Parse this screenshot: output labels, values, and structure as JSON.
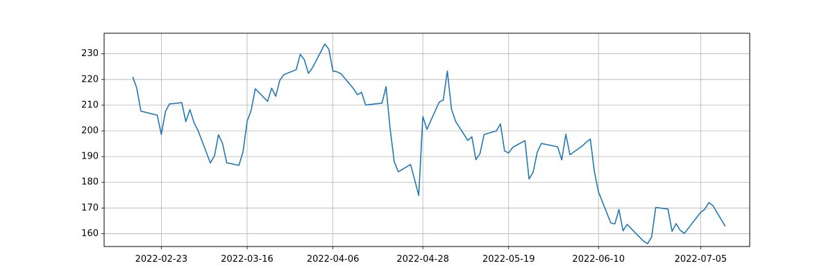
{
  "chart_data": {
    "type": "line",
    "title": "",
    "xlabel": "",
    "ylabel": "",
    "x_ticks": [
      "2022-02-23",
      "2022-03-16",
      "2022-04-06",
      "2022-04-28",
      "2022-05-19",
      "2022-06-10",
      "2022-07-05"
    ],
    "y_ticks": [
      160,
      170,
      180,
      190,
      200,
      210,
      220,
      230
    ],
    "xlim": [
      "2022-02-09",
      "2022-07-17"
    ],
    "ylim": [
      155,
      238
    ],
    "grid": true,
    "colors": {
      "line": "#1f77b4",
      "grid": "#b0b0b0"
    },
    "series": [
      {
        "x": [
          "2022-02-16",
          "2022-02-17",
          "2022-02-18",
          "2022-02-22",
          "2022-02-23",
          "2022-02-24",
          "2022-02-25",
          "2022-02-28",
          "2022-03-01",
          "2022-03-02",
          "2022-03-03",
          "2022-03-04",
          "2022-03-07",
          "2022-03-08",
          "2022-03-09",
          "2022-03-10",
          "2022-03-11",
          "2022-03-14",
          "2022-03-15",
          "2022-03-16",
          "2022-03-17",
          "2022-03-18",
          "2022-03-21",
          "2022-03-22",
          "2022-03-23",
          "2022-03-24",
          "2022-03-25",
          "2022-03-28",
          "2022-03-29",
          "2022-03-30",
          "2022-03-31",
          "2022-04-01",
          "2022-04-04",
          "2022-04-05",
          "2022-04-06",
          "2022-04-07",
          "2022-04-08",
          "2022-04-11",
          "2022-04-12",
          "2022-04-13",
          "2022-04-14",
          "2022-04-18",
          "2022-04-19",
          "2022-04-20",
          "2022-04-21",
          "2022-04-22",
          "2022-04-25",
          "2022-04-26",
          "2022-04-27",
          "2022-04-28",
          "2022-04-29",
          "2022-05-02",
          "2022-05-03",
          "2022-05-04",
          "2022-05-05",
          "2022-05-06",
          "2022-05-09",
          "2022-05-10",
          "2022-05-11",
          "2022-05-12",
          "2022-05-13",
          "2022-05-16",
          "2022-05-17",
          "2022-05-18",
          "2022-05-19",
          "2022-05-20",
          "2022-05-23",
          "2022-05-24",
          "2022-05-25",
          "2022-05-26",
          "2022-05-27",
          "2022-05-31",
          "2022-06-01",
          "2022-06-02",
          "2022-06-03",
          "2022-06-06",
          "2022-06-07",
          "2022-06-08",
          "2022-06-09",
          "2022-06-10",
          "2022-06-13",
          "2022-06-14",
          "2022-06-15",
          "2022-06-16",
          "2022-06-17",
          "2022-06-21",
          "2022-06-22",
          "2022-06-23",
          "2022-06-24",
          "2022-06-27",
          "2022-06-28",
          "2022-06-29",
          "2022-06-30",
          "2022-07-01",
          "2022-07-05",
          "2022-07-06",
          "2022-07-07",
          "2022-07-08",
          "2022-07-11"
        ],
        "y": [
          221.0,
          216.6,
          207.7,
          206.1,
          198.6,
          207.5,
          210.5,
          211.0,
          203.6,
          208.3,
          203.2,
          200.1,
          187.5,
          190.3,
          198.5,
          195.0,
          187.6,
          186.6,
          191.9,
          203.7,
          208.1,
          216.4,
          211.5,
          216.6,
          213.5,
          219.7,
          221.9,
          223.8,
          229.8,
          227.7,
          222.4,
          224.6,
          233.8,
          231.8,
          223.3,
          223.0,
          222.2,
          216.5,
          214.1,
          215.0,
          210.1,
          210.8,
          217.2,
          200.8,
          188.0,
          184.1,
          186.9,
          181.0,
          174.9,
          205.6,
          200.6,
          211.2,
          212.0,
          223.3,
          208.6,
          203.8,
          196.3,
          197.7,
          188.8,
          191.2,
          198.6,
          200.0,
          202.7,
          192.2,
          191.4,
          193.6,
          196.2,
          181.3,
          183.9,
          191.7,
          195.1,
          193.8,
          188.7,
          198.7,
          190.7,
          194.1,
          195.6,
          196.8,
          184.0,
          176.2,
          164.2,
          163.8,
          169.4,
          161.1,
          163.6,
          157.1,
          156.1,
          158.7,
          170.2,
          169.6,
          160.9,
          163.9,
          161.3,
          160.1,
          168.3,
          169.5,
          172.1,
          170.9,
          162.9
        ]
      }
    ]
  }
}
